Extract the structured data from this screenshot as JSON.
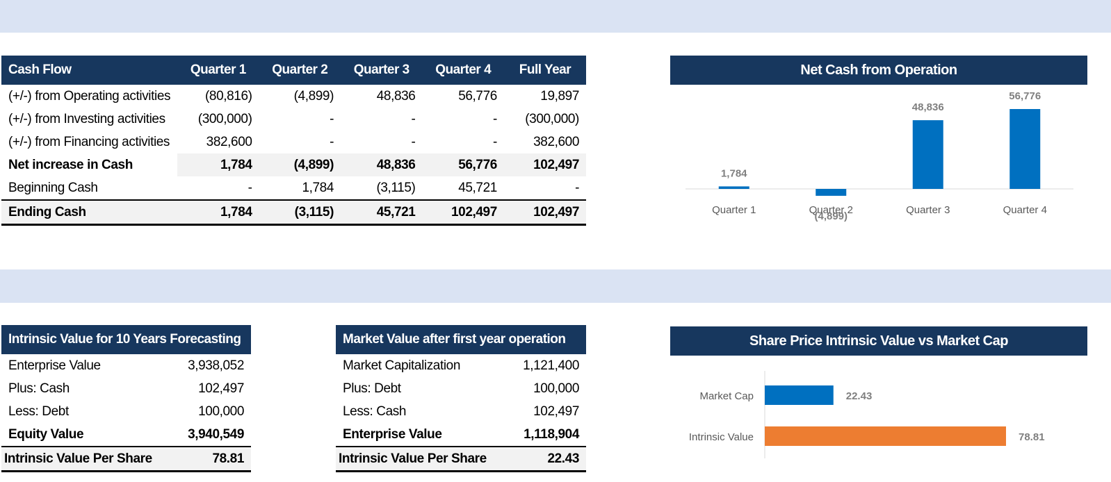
{
  "cash_flow": {
    "headers": [
      "Cash Flow",
      "Quarter 1",
      "Quarter 2",
      "Quarter 3",
      "Quarter 4",
      "Full Year"
    ],
    "rows": [
      {
        "label": "(+/-) from Operating activities",
        "values": [
          "(80,816)",
          "(4,899)",
          "48,836",
          "56,776",
          "19,897"
        ]
      },
      {
        "label": "(+/-) from Investing activities",
        "values": [
          "(300,000)",
          "-",
          "-",
          "-",
          "(300,000)"
        ]
      },
      {
        "label": "(+/-) from Financing activities",
        "values": [
          "382,600",
          "-",
          "-",
          "-",
          "382,600"
        ]
      },
      {
        "label": "Net increase in Cash",
        "values": [
          "1,784",
          "(4,899)",
          "48,836",
          "56,776",
          "102,497"
        ]
      },
      {
        "label": "Beginning Cash",
        "values": [
          "-",
          "1,784",
          "(3,115)",
          "45,721",
          "-"
        ]
      },
      {
        "label": "Ending Cash",
        "values": [
          "1,784",
          "(3,115)",
          "45,721",
          "102,497",
          "102,497"
        ]
      }
    ]
  },
  "intrinsic": {
    "header": "Intrinsic Value for 10 Years Forecasting",
    "rows": [
      {
        "label": "Enterprise Value",
        "value": "3,938,052"
      },
      {
        "label": "Plus: Cash",
        "value": "102,497"
      },
      {
        "label": "Less: Debt",
        "value": "100,000"
      },
      {
        "label": "Equity Value",
        "value": "3,940,549"
      },
      {
        "label": "Intrinsic Value Per Share",
        "value": "78.81"
      }
    ]
  },
  "market": {
    "header": "Market Value after first year operation",
    "rows": [
      {
        "label": "Market Capitalization",
        "value": "1,121,400"
      },
      {
        "label": "Plus: Debt",
        "value": "100,000"
      },
      {
        "label": "Less: Cash",
        "value": "102,497"
      },
      {
        "label": "Enterprise Value",
        "value": "1,118,904"
      },
      {
        "label": "Intrinsic Value Per Share",
        "value": "22.43"
      }
    ]
  },
  "chart_data": [
    {
      "type": "bar",
      "title": "Net Cash from Operation",
      "categories": [
        "Quarter 1",
        "Quarter 2",
        "Quarter 3",
        "Quarter 4"
      ],
      "values": [
        1784,
        -4899,
        48836,
        56776
      ],
      "data_labels": [
        "1,784",
        "(4,899)",
        "48,836",
        "56,776"
      ],
      "color": "#0070c0",
      "grid": false
    },
    {
      "type": "bar",
      "orientation": "horizontal",
      "title": "Share Price Intrinsic Value vs Market Cap",
      "categories": [
        "Market Cap",
        "Intrinsic Value"
      ],
      "values": [
        22.43,
        78.81
      ],
      "data_labels": [
        "22.43",
        "78.81"
      ],
      "colors": [
        "#0070c0",
        "#ed7d31"
      ],
      "grid": false
    }
  ]
}
